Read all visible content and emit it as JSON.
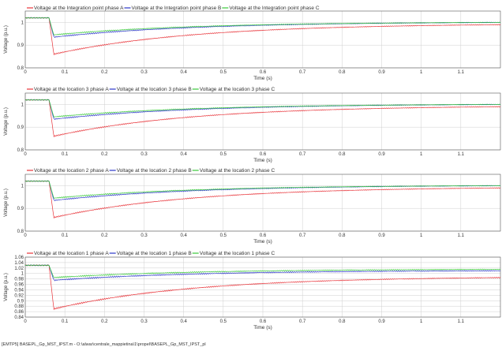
{
  "footer": "[EMTP5] BASEPL_Gp_MST_IPST.m - O:\\alwar\\centrale_mappietina\\1\\propel\\BASEPL_Gp_MST_IPST_pl",
  "colors": {
    "phase_a": "#e8343a",
    "phase_b": "#2a35c9",
    "phase_c": "#38c83a",
    "grid": "#cfcfcf",
    "axis": "#555555"
  },
  "chart_data": [
    {
      "type": "line",
      "xlabel": "Time (s)",
      "ylabel": "Voltage (p.u.)",
      "xlim": [
        0,
        1.2
      ],
      "ylim": [
        0.8,
        1.05
      ],
      "xticks": [
        0,
        0.1,
        0.2,
        0.3,
        0.4,
        0.5,
        0.6,
        0.7,
        0.8,
        0.9,
        1,
        1.1
      ],
      "yticks": [
        0.8,
        0.9,
        1
      ],
      "grid": true,
      "legend": "top",
      "series": [
        {
          "name": "Voltage at the Integration point phase A",
          "color": "#e8343a",
          "pre": 1.02,
          "fault_time": 0.06,
          "min": 0.86,
          "end": 0.99
        },
        {
          "name": "Voltage at the Integration point phase B",
          "color": "#2a35c9",
          "pre": 1.02,
          "fault_time": 0.06,
          "min": 0.935,
          "end": 1.0
        },
        {
          "name": "Voltage at the Integration point phase C",
          "color": "#38c83a",
          "pre": 1.02,
          "fault_time": 0.06,
          "min": 0.945,
          "end": 1.0
        }
      ]
    },
    {
      "type": "line",
      "xlabel": "Time (s)",
      "ylabel": "Voltage (p.u.)",
      "xlim": [
        0,
        1.2
      ],
      "ylim": [
        0.8,
        1.05
      ],
      "xticks": [
        0,
        0.1,
        0.2,
        0.3,
        0.4,
        0.5,
        0.6,
        0.7,
        0.8,
        0.9,
        1,
        1.1
      ],
      "yticks": [
        0.8,
        0.9,
        1
      ],
      "grid": true,
      "legend": "top",
      "series": [
        {
          "name": "Voltage at the location 3 phase A",
          "color": "#e8343a",
          "pre": 1.02,
          "fault_time": 0.06,
          "min": 0.86,
          "end": 0.99
        },
        {
          "name": "Voltage at the location 3 phase B",
          "color": "#2a35c9",
          "pre": 1.02,
          "fault_time": 0.06,
          "min": 0.935,
          "end": 1.0
        },
        {
          "name": "Voltage at the location 3 phase C",
          "color": "#38c83a",
          "pre": 1.02,
          "fault_time": 0.06,
          "min": 0.945,
          "end": 1.0
        }
      ]
    },
    {
      "type": "line",
      "xlabel": "Time (s)",
      "ylabel": "Voltage (p.u.)",
      "xlim": [
        0,
        1.2
      ],
      "ylim": [
        0.8,
        1.05
      ],
      "xticks": [
        0,
        0.1,
        0.2,
        0.3,
        0.4,
        0.5,
        0.6,
        0.7,
        0.8,
        0.9,
        1,
        1.1
      ],
      "yticks": [
        0.8,
        0.9,
        1
      ],
      "grid": true,
      "legend": "top",
      "series": [
        {
          "name": "Voltage at the location 2 phase A",
          "color": "#e8343a",
          "pre": 1.02,
          "fault_time": 0.06,
          "min": 0.86,
          "end": 0.99
        },
        {
          "name": "Voltage at the location 2 phase B",
          "color": "#2a35c9",
          "pre": 1.02,
          "fault_time": 0.06,
          "min": 0.935,
          "end": 1.0
        },
        {
          "name": "Voltage at the location 2 phase C",
          "color": "#38c83a",
          "pre": 1.02,
          "fault_time": 0.06,
          "min": 0.945,
          "end": 1.0
        }
      ]
    },
    {
      "type": "line",
      "xlabel": "Time (s)",
      "ylabel": "Voltage (p.u.)",
      "xlim": [
        0,
        1.2
      ],
      "ylim": [
        0.84,
        1.06
      ],
      "xticks": [
        0,
        0.1,
        0.2,
        0.3,
        0.4,
        0.5,
        0.6,
        0.7,
        0.8,
        0.9,
        1,
        1.1
      ],
      "yticks": [
        0.84,
        0.86,
        0.88,
        0.9,
        0.92,
        0.94,
        0.96,
        0.98,
        1,
        1.02,
        1.04,
        1.06
      ],
      "grid": true,
      "legend": "top",
      "series": [
        {
          "name": "Voltage at the location 1 phase A",
          "color": "#e8343a",
          "pre": 1.03,
          "fault_time": 0.06,
          "min": 0.87,
          "end": 0.985
        },
        {
          "name": "Voltage at the location 1 phase B",
          "color": "#2a35c9",
          "pre": 1.03,
          "fault_time": 0.06,
          "min": 0.975,
          "end": 1.01
        },
        {
          "name": "Voltage at the location 1 phase C",
          "color": "#38c83a",
          "pre": 1.03,
          "fault_time": 0.06,
          "min": 0.985,
          "end": 1.015
        }
      ]
    }
  ]
}
